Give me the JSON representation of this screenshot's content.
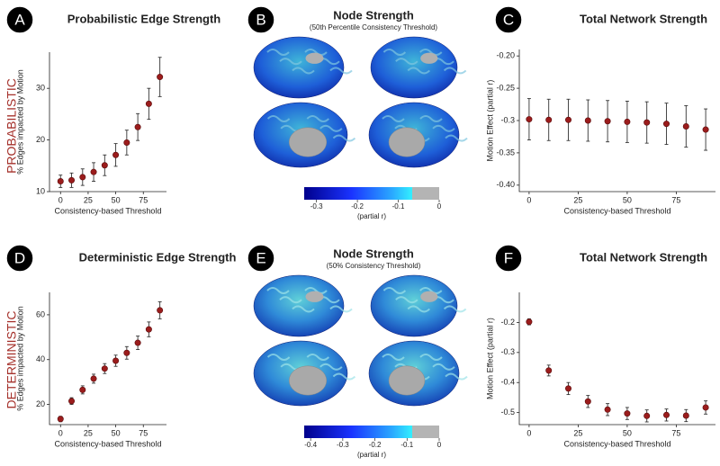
{
  "row_labels": [
    "PROBABILISTIC",
    "DETERMINISTIC"
  ],
  "chart_data": [
    {
      "panel": "A",
      "type": "scatter",
      "title": "Probabilistic Edge Strength",
      "x_label": "Consistency-based Threshold",
      "y_label": "% Edges impacted by Motion",
      "color": "#9b1c1c",
      "x": [
        0,
        10,
        20,
        30,
        40,
        50,
        60,
        70,
        80,
        90
      ],
      "values": [
        12,
        12.2,
        12.8,
        13.8,
        15.1,
        17.1,
        19.5,
        22.5,
        27,
        32.2
      ],
      "errors": [
        1.2,
        1.4,
        1.6,
        1.8,
        2,
        2.2,
        2.4,
        2.6,
        3,
        3.8
      ],
      "xlim": [
        -10,
        96
      ],
      "xticks": [
        0,
        25,
        50,
        75
      ],
      "ylim": [
        10,
        37
      ],
      "yticks": [
        10,
        20,
        30
      ]
    },
    {
      "panel": "C",
      "type": "scatter",
      "title": "Total Network Strength",
      "x_label": "Consistency-based Threshold",
      "y_label": "Motion Effect (partial r)",
      "color": "#9b1c1c",
      "x": [
        0,
        10,
        20,
        30,
        40,
        50,
        60,
        70,
        80,
        90
      ],
      "values": [
        -0.298,
        -0.299,
        -0.299,
        -0.3,
        -0.301,
        -0.302,
        -0.303,
        -0.305,
        -0.309,
        -0.314
      ],
      "errors": [
        0.032,
        0.032,
        0.032,
        0.032,
        0.032,
        0.032,
        0.032,
        0.032,
        0.032,
        0.032
      ],
      "xlim": [
        -5,
        95
      ],
      "xticks": [
        0,
        25,
        50,
        75
      ],
      "ylim": [
        -0.41,
        -0.19
      ],
      "yticks": [
        {
          "value": -0.4,
          "label": "-0.40"
        },
        -0.35,
        -0.3,
        -0.25,
        {
          "value": -0.2,
          "label": "-0.20"
        }
      ]
    },
    {
      "panel": "D",
      "type": "scatter",
      "title": "Deterministic Edge Strength",
      "x_label": "Consistency-based Threshold",
      "y_label": "% Edges impacted by Motion",
      "color": "#9b1c1c",
      "x": [
        0,
        10,
        20,
        30,
        40,
        50,
        60,
        70,
        80,
        90
      ],
      "values": [
        13.5,
        21.5,
        26.5,
        31.5,
        36,
        39.5,
        43,
        47.5,
        53.5,
        62
      ],
      "errors": [
        1.2,
        1.5,
        1.8,
        2,
        2.2,
        2.5,
        2.8,
        3,
        3.3,
        3.8
      ],
      "xlim": [
        -10,
        96
      ],
      "xticks": [
        0,
        25,
        50,
        75
      ],
      "ylim": [
        11,
        70
      ],
      "yticks": [
        20,
        40,
        60
      ]
    },
    {
      "panel": "F",
      "type": "scatter",
      "title": "Total Network Strength",
      "x_label": "Consistency-based Threshold",
      "y_label": "Motion Effect (partial r)",
      "color": "#9b1c1c",
      "x": [
        0,
        10,
        20,
        30,
        40,
        50,
        60,
        70,
        80,
        90
      ],
      "values": [
        -0.198,
        -0.36,
        -0.42,
        -0.463,
        -0.49,
        -0.503,
        -0.511,
        -0.508,
        -0.51,
        -0.483
      ],
      "errors": [
        0.01,
        0.018,
        0.02,
        0.02,
        0.02,
        0.02,
        0.02,
        0.02,
        0.02,
        0.022
      ],
      "xlim": [
        -5,
        95
      ],
      "xticks": [
        0,
        25,
        50,
        75
      ],
      "ylim": [
        -0.54,
        -0.1
      ],
      "yticks": [
        -0.5,
        -0.4,
        -0.3,
        -0.2
      ]
    }
  ],
  "brain_panels": [
    {
      "panel": "B",
      "title": "Node Strength",
      "subtitle": "(50th Percentile Consistency Threshold)",
      "colorbar_label": "(partial r)",
      "colorbar_range": [
        -0.33,
        0
      ],
      "colorbar_ticks": [
        -0.3,
        -0.2,
        -0.1,
        0
      ]
    },
    {
      "panel": "E",
      "title": "Node Strength",
      "subtitle": "(50% Consistency Threshold)",
      "colorbar_label": "(partial r)",
      "colorbar_range": [
        -0.42,
        0
      ],
      "colorbar_ticks": [
        -0.4,
        -0.3,
        -0.2,
        -0.1,
        0
      ]
    }
  ]
}
